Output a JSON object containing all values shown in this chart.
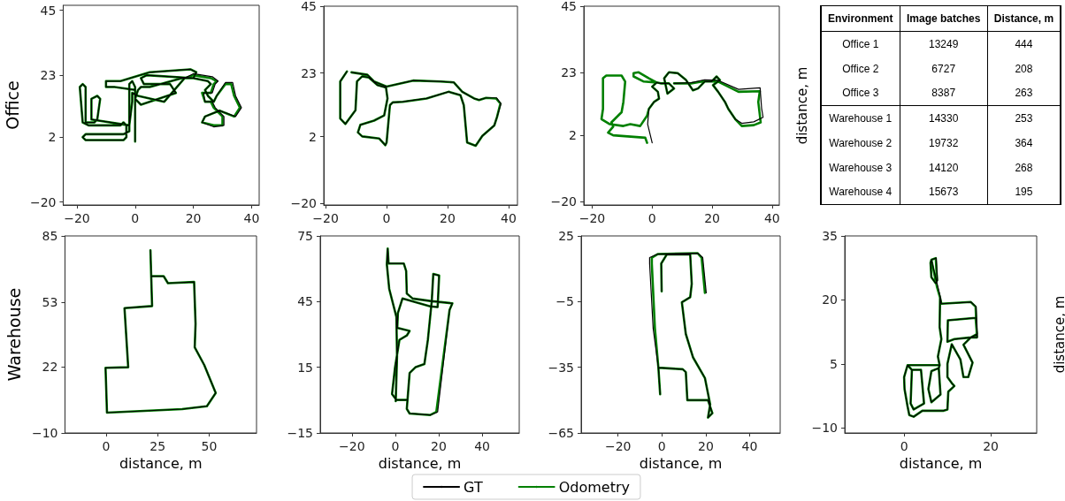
{
  "chart_data": [
    {
      "type": "line",
      "ylabel": "Office",
      "xlim": [
        -24.7,
        42.6
      ],
      "ylim": [
        -21,
        46.7
      ],
      "xticks": [
        -20,
        0,
        20,
        40
      ],
      "yticks": [
        -20,
        2,
        23,
        45
      ],
      "marker": "none",
      "series": [
        {
          "color": "#000000",
          "x": [
            0,
            0,
            0,
            -1,
            -2,
            -2,
            -4,
            -17,
            -18,
            -17,
            -4,
            -3,
            -3,
            -4,
            -5,
            -16,
            -18,
            -19,
            -18,
            -17,
            -17,
            -14,
            -13,
            -12,
            -13,
            -15,
            -15,
            -2,
            -1,
            -1,
            1,
            10,
            17,
            20,
            26.5,
            28.5,
            27.5,
            26.5,
            23.5,
            24,
            26.5,
            27.5,
            30.5,
            30.5,
            27,
            23,
            24,
            29,
            34.5,
            36.5,
            34.5,
            33.5,
            31,
            28,
            27,
            25,
            24,
            26,
            25,
            20,
            16,
            5,
            2,
            1,
            0,
            2,
            14,
            12,
            3,
            2,
            4,
            20,
            21,
            19,
            5,
            -5,
            -10,
            -10,
            -7,
            0
          ],
          "values": [
            0.5,
            14,
            19,
            21,
            20,
            4,
            3,
            3,
            2,
            1,
            1,
            2,
            6,
            7,
            6,
            6,
            7,
            19,
            20,
            19,
            7,
            7,
            8,
            15,
            16,
            15,
            8,
            6,
            14,
            17,
            16,
            14,
            22,
            23.5,
            22.5,
            21,
            20,
            17,
            17,
            14,
            14,
            12,
            9,
            6,
            5.5,
            7,
            9,
            11,
            9,
            12,
            16,
            20.5,
            20.5,
            16,
            14,
            16,
            18,
            20,
            21,
            22,
            22,
            19,
            19,
            18,
            15,
            13,
            17,
            20,
            20,
            22,
            23,
            22,
            24,
            25,
            24,
            21,
            21,
            19,
            19,
            18
          ]
        },
        {
          "color": "#008000",
          "x": [
            0,
            0,
            0,
            -1,
            -2,
            -2,
            -4,
            -17,
            -18,
            -17,
            -4,
            -3,
            -3,
            -4,
            -5,
            -16,
            -18,
            -19,
            -18,
            -17,
            -17,
            -14,
            -13,
            -12,
            -13,
            -15,
            -15,
            -2,
            -1,
            -1,
            1,
            10,
            17,
            20,
            26,
            28,
            27,
            26,
            23,
            24,
            26,
            27,
            30,
            30,
            27,
            23,
            24,
            29,
            34,
            36,
            34,
            33,
            31,
            28,
            27,
            25,
            24,
            26,
            25,
            20,
            16,
            5,
            2,
            1,
            0,
            2,
            14,
            12,
            3,
            2,
            4,
            20,
            21,
            19,
            5,
            -5,
            -10,
            -10,
            -7,
            0
          ],
          "values": [
            0.5,
            14,
            19,
            21,
            20,
            4,
            3,
            3,
            2,
            1,
            1,
            2,
            6,
            7,
            6,
            6,
            7,
            19,
            20,
            19,
            7,
            7,
            8,
            15,
            16,
            15,
            8,
            6,
            14,
            17,
            16,
            14,
            22,
            23,
            22,
            21,
            20,
            17,
            17,
            14,
            14,
            12,
            9,
            6,
            6,
            7,
            9,
            11,
            9,
            12,
            16,
            20,
            20,
            16,
            14,
            16,
            18,
            20,
            21,
            22,
            22,
            19,
            19,
            18,
            15,
            13,
            17,
            20,
            20,
            22,
            23,
            22,
            24,
            25,
            24,
            21,
            21,
            19,
            19,
            18
          ]
        }
      ]
    },
    {
      "type": "line",
      "xlim": [
        -20.6,
        42.9
      ],
      "ylim": [
        -20.5,
        45
      ],
      "xticks": [
        -20,
        0,
        20,
        40
      ],
      "yticks": [
        -20,
        2,
        23,
        45
      ],
      "marker": "none",
      "series": [
        {
          "color": "#000000",
          "x": [
            -13,
            -15.2,
            -15.2,
            -13.5,
            -10.2,
            -9.7,
            -8,
            -5.8,
            -3,
            -0.2,
            0.3,
            -0.8,
            -4.1,
            -8.6,
            -9.4,
            -8,
            -2.4,
            -0.4,
            0,
            1.1,
            2,
            5.3,
            13.1,
            20.3,
            24.2,
            25.3,
            26.4,
            29.2,
            31.4,
            35.3,
            36.2,
            37.5,
            36,
            32.6,
            30.3,
            28.7,
            24.8,
            22,
            17.6,
            8.7,
            0,
            -4.1,
            -6.3,
            -11.5
          ],
          "values": [
            23.5,
            20.2,
            8,
            6.2,
            10.7,
            20.2,
            21.9,
            21.5,
            19,
            18.2,
            14.6,
            9,
            7.3,
            5.9,
            3.4,
            2.1,
            1.4,
            -0.8,
            0.1,
            12.4,
            13.3,
            13.5,
            14.6,
            16.8,
            15.7,
            12.4,
            0.1,
            -1,
            2.3,
            5.7,
            8.5,
            12.9,
            14.8,
            14.8,
            14.1,
            14.6,
            16.8,
            19.9,
            20.2,
            20.5,
            18.5,
            20.2,
            22.4,
            23.2
          ]
        },
        {
          "color": "#008000",
          "x": [
            -13,
            -15.2,
            -15.2,
            -13.5,
            -10.2,
            -9.7,
            -8,
            -5.8,
            -3,
            -0.2,
            0.3,
            -0.8,
            -4.1,
            -8.6,
            -9.4,
            -8,
            -2.4,
            -0.4,
            0,
            1.1,
            2,
            5.3,
            13.1,
            20.3,
            24.2,
            25.3,
            26.4,
            29.2,
            31.4,
            35.3,
            36.2,
            37.3,
            35.9,
            32.6,
            30.3,
            28.7,
            24.8,
            22,
            17.6,
            8.7,
            0,
            -4.1,
            -6.3,
            -11.5
          ],
          "values": [
            23.5,
            20.2,
            8,
            6.2,
            10.7,
            20.2,
            21.9,
            21.5,
            19,
            18.2,
            14.6,
            9,
            7.3,
            5.9,
            3.4,
            2.1,
            1.4,
            -0.8,
            0.1,
            12.4,
            13.3,
            13.5,
            14.6,
            16.8,
            15.7,
            12.4,
            0.1,
            -1,
            2.3,
            5.7,
            8.5,
            12.9,
            14.6,
            14.8,
            14.1,
            14.6,
            16.8,
            19.9,
            20.2,
            20.5,
            18.5,
            20.2,
            22.4,
            23.2
          ]
        }
      ]
    },
    {
      "type": "line",
      "y2label": "distance, m",
      "xlim": [
        -22.8,
        42.4
      ],
      "ylim": [
        -21.2,
        45
      ],
      "xticks": [
        -20,
        0,
        20,
        40
      ],
      "yticks": [
        -20,
        2,
        23,
        45
      ],
      "marker": "none",
      "series": [
        {
          "color": "#000000",
          "x": [
            0,
            -1.5,
            -1.1,
            0.6,
            2.3,
            1.9,
            0,
            1.5,
            2.8,
            5.6,
            7.3,
            5.1,
            4,
            5.6,
            8.5,
            11.3,
            13.6,
            15.3,
            17.5,
            19.8,
            21.5,
            22.6,
            20.3,
            22,
            24.3,
            25.4,
            27.7,
            29.9,
            33.9,
            37,
            36.5,
            36,
            28.8,
            22,
            17.5,
            13,
            7.3
          ],
          "values": [
            -0.5,
            5.7,
            10.8,
            13.1,
            14.2,
            16.5,
            18.2,
            19.6,
            19.3,
            19.3,
            17.6,
            15.9,
            21,
            23,
            22.7,
            20.4,
            17,
            17.6,
            19.9,
            19.9,
            21.6,
            20.4,
            18.7,
            16.5,
            13.1,
            10.8,
            7.4,
            6,
            6.5,
            8,
            11,
            17.8,
            17.3,
            20.3,
            20.5,
            19.5,
            19.3
          ]
        },
        {
          "color": "#008000",
          "x": [
            -1.7,
            -2.3,
            -13,
            -14.7,
            -13,
            -13.6,
            -11.9,
            -10.2,
            -9.6,
            -9,
            -10.2,
            -15.3,
            -16.4,
            -16.4,
            -16.9,
            -14.1,
            -9.6,
            -7.3,
            -4,
            -1.7,
            -1.1,
            0.6,
            2.3,
            1.9,
            0,
            1.5,
            -1.1,
            -4.5,
            -6.2,
            -6.2,
            -2.8,
            1.5,
            2.8,
            5.6,
            7.3,
            5.1,
            4,
            5.6,
            8.5,
            11.3,
            13.6,
            15.3,
            17.5,
            19.8,
            21.5,
            22.6,
            20.3,
            22,
            24.3,
            25.4,
            27.7,
            29.9,
            33.9,
            36.2,
            35.4,
            35.9,
            28.8,
            22,
            17.5,
            13,
            7.3
          ],
          "values": [
            -0.5,
            1.2,
            2,
            2.9,
            4.9,
            6.3,
            8,
            9.7,
            13.1,
            19.9,
            21.9,
            21.9,
            21,
            10.8,
            7.4,
            5.7,
            5.1,
            5.7,
            5.1,
            8.5,
            10.8,
            13.1,
            14.2,
            16.5,
            18.2,
            19.6,
            21,
            23,
            22.7,
            21.6,
            19.9,
            19.6,
            19.3,
            19.3,
            17.6,
            15.9,
            21,
            23,
            22.7,
            20.4,
            17,
            17.6,
            19.9,
            19.9,
            21.6,
            20.4,
            18.7,
            16.5,
            13.1,
            10.8,
            7.4,
            5.1,
            5.4,
            6.3,
            13.1,
            16.7,
            16.5,
            19.9,
            20.1,
            19.3,
            19.3
          ]
        }
      ]
    },
    {
      "type": "other",
      "annotations": [
        "Environment",
        "Image batches",
        "Distance, m",
        "Office 1",
        "13249",
        "444",
        "Office 2",
        "6727",
        "208",
        "Office 3",
        "8387",
        "263",
        "Warehouse 1",
        "14330",
        "253",
        "Warehouse 2",
        "19732",
        "364",
        "Warehouse 3",
        "14120",
        "268",
        "Warehouse 4",
        "15673",
        "195"
      ]
    },
    {
      "type": "line",
      "ylabel": "Warehouse",
      "xlabel": "distance, m",
      "xlim": [
        -20,
        73
      ],
      "ylim": [
        -10,
        85
      ],
      "xticks": [
        0,
        25,
        50
      ],
      "yticks": [
        -10,
        22,
        53,
        85
      ],
      "marker": "none",
      "series": [
        {
          "color": "#000000",
          "x": [
            21.5,
            22.3,
            8.9,
            10.7,
            -0.3,
            0.4,
            36.9,
            48.9,
            53.2,
            47.6,
            43,
            43.4,
            42.7,
            30,
            27.9,
            22
          ],
          "values": [
            78.1,
            51.2,
            50.2,
            21.7,
            21.4,
            -0.2,
            1.5,
            2.9,
            9.3,
            22.8,
            31.3,
            42.6,
            62.8,
            62.2,
            65.6,
            65.6
          ]
        },
        {
          "color": "#008000",
          "x": [
            21.5,
            22.3,
            8.9,
            10.7,
            -0.3,
            0.4,
            36.9,
            48.9,
            53.2,
            47.6,
            43,
            43.4,
            42.7,
            30,
            27.9,
            22
          ],
          "values": [
            78.1,
            51.2,
            50.2,
            21.7,
            21.4,
            -0.2,
            1.5,
            2.9,
            9.3,
            22.8,
            31.3,
            42.6,
            62.8,
            62.2,
            65.6,
            65.6
          ]
        }
      ]
    },
    {
      "type": "line",
      "xlabel": "distance, m",
      "xlim": [
        -34.6,
        57.1
      ],
      "ylim": [
        -15,
        75
      ],
      "xticks": [
        -20,
        0,
        20,
        40
      ],
      "yticks": [
        -15,
        15,
        45,
        75
      ],
      "marker": "none",
      "legend": "bottom",
      "series": [
        {
          "name": "GT",
          "color": "#000000",
          "x": [
            0.2,
            0.8,
            0.5,
            -2.8,
            -3.9,
            -3.5,
            -3.1,
            3.9,
            5,
            5.3,
            8,
            16.1,
            26.3,
            25,
            19.5,
            16.1,
            6.6,
            5.3,
            6.6,
            9.4,
            13.4,
            15,
            16.8,
            17.5,
            20.2,
            19.5,
            16.1,
            3.3,
            1.2,
            0.9,
            6.6,
            5.3,
            1.9,
            -0.1,
            -1.5,
            0.5,
            5.3
          ],
          "values": [
            -0.5,
            20,
            38,
            50.8,
            62,
            69.2,
            62.4,
            62.4,
            59,
            48.7,
            46.4,
            45.3,
            44.2,
            41.2,
            -5.4,
            -6.8,
            -6.1,
            -4,
            12.4,
            15.1,
            16.5,
            27.5,
            45.3,
            57.6,
            56.9,
            42.5,
            42.8,
            46.4,
            39.8,
            33,
            31.6,
            29.5,
            27.5,
            15.1,
            2.8,
            0.1,
            0.1
          ]
        },
        {
          "name": "Odometry",
          "color": "#008000",
          "x": [
            0.2,
            0.8,
            0.5,
            -2.8,
            -3.9,
            -3.5,
            -3.1,
            3.9,
            5,
            5.3,
            8,
            16.1,
            26.3,
            25,
            18.9,
            16.1,
            6.6,
            5.3,
            6.6,
            9.4,
            13.4,
            15,
            16.8,
            17.5,
            20.2,
            19.5,
            16.1,
            3.3,
            1.2,
            0.9,
            6.6,
            5.3,
            1.9,
            -0.1,
            -1.5,
            0.5,
            5.3
          ],
          "values": [
            -0.5,
            20,
            38,
            50.8,
            62,
            69.2,
            62.4,
            62.4,
            59,
            48.7,
            46.4,
            45.3,
            44.2,
            41.2,
            -5.4,
            -6.8,
            -6.1,
            -4,
            12.4,
            15.1,
            16.5,
            27.5,
            45.3,
            57.6,
            56.9,
            42.5,
            42.8,
            46.4,
            39.8,
            33,
            31.6,
            29.5,
            27.5,
            15.1,
            2.8,
            0.1,
            0.1
          ]
        }
      ]
    },
    {
      "type": "line",
      "xlabel": "distance, m",
      "xlim": [
        -36.8,
        53.9
      ],
      "ylim": [
        -65,
        25
      ],
      "xticks": [
        -20,
        0,
        20,
        40
      ],
      "yticks": [
        -65,
        -35,
        -5,
        25
      ],
      "marker": "none",
      "series": [
        {
          "color": "#000000",
          "x": [
            20.2,
            18.6,
            16.3,
            -1.9,
            -5.6,
            -5.6,
            -4,
            -1.6,
            -0.8,
            -1.6,
            9.5,
            10.9,
            11.6,
            21,
            23,
            21,
            22,
            19.6,
            14.2,
            10.9,
            9.1,
            12.9,
            13.6,
            12.9,
            2.2,
            -0.3,
            -0.1
          ],
          "values": [
            -1,
            15.1,
            17.1,
            16.7,
            15.1,
            12.4,
            -17.1,
            -35.2,
            -47.3,
            -35.2,
            -35.9,
            -37.2,
            -50,
            -50,
            -56,
            -58,
            -52,
            -39.9,
            -30.5,
            -19.8,
            -5.3,
            -3,
            3.1,
            16.5,
            16.5,
            12.4,
            -0.3
          ]
        },
        {
          "color": "#008000",
          "x": [
            19.6,
            18.1,
            16.3,
            -1.9,
            -4.6,
            -4.6,
            -3.2,
            -1.6,
            -0.8,
            -1.6,
            9.5,
            10.9,
            11.6,
            21,
            23,
            21,
            22,
            19.6,
            14.2,
            10.9,
            9.1,
            12.9,
            13.6,
            12.9,
            2.2,
            -0.3,
            -0.1
          ],
          "values": [
            -1,
            15.1,
            17.1,
            16.7,
            15.1,
            12.4,
            -17.1,
            -35.2,
            -47.3,
            -35.2,
            -35.9,
            -37.2,
            -50,
            -50,
            -56,
            -58,
            -52,
            -39.9,
            -30.5,
            -19.8,
            -5.3,
            -3,
            3.1,
            16.5,
            16.5,
            12.4,
            -0.3
          ]
        }
      ]
    },
    {
      "type": "line",
      "xlabel": "distance, m",
      "y2label": "distance, m",
      "xlim": [
        -13.7,
        30.6
      ],
      "ylim": [
        -11.2,
        35
      ],
      "xticks": [
        0,
        20
      ],
      "yticks": [
        -10,
        5,
        20,
        35
      ],
      "marker": "none",
      "series": [
        {
          "color": "#000000",
          "x": [
            6.3,
            7.4,
            7.7,
            7.3,
            6.3,
            6.1,
            6.3,
            7.8,
            8.4,
            8.6,
            15.4,
            16.6,
            16.9,
            15.4,
            11.6,
            10,
            10.1,
            16.6,
            16.9,
            15.4,
            13.7,
            15.8,
            14.8,
            13.7,
            13,
            11,
            10,
            10,
            11,
            11.6,
            10.2,
            10,
            9,
            4.2,
            2.2,
            1.2,
            0.8,
            0.1,
            0,
            0.8,
            1.8,
            3.9,
            4.6,
            2.2,
            1.5,
            1.8,
            0.8,
            8.2,
            8,
            6.3,
            5.6,
            6.3,
            8.4,
            8,
            8.2,
            7.8,
            8.6,
            8.2,
            8.3
          ],
          "values": [
            29.4,
            29.8,
            24.6,
            23.9,
            25.3,
            28.7,
            29.4,
            23,
            20.5,
            19.1,
            19.5,
            18.4,
            11.2,
            11.2,
            10.8,
            10.2,
            15.2,
            15.8,
            12,
            11.2,
            9.5,
            5.3,
            1.9,
            1.9,
            6,
            9.6,
            5,
            1.9,
            0.5,
            -0.2,
            -1.5,
            -5.7,
            -6,
            -6,
            -7.4,
            -7,
            -5,
            -0.9,
            1.9,
            4.7,
            3.6,
            3.6,
            -4.3,
            -5.7,
            -4.3,
            3.6,
            4.7,
            4.7,
            4,
            3.3,
            -0.9,
            -4,
            -2.2,
            4,
            4.7,
            6.7,
            10.8,
            13.6,
            20.5
          ]
        },
        {
          "color": "#008000",
          "x": [
            6.3,
            7.3,
            7.6,
            7.3,
            6.3,
            6.1,
            6.3,
            7.6,
            8.3,
            8.6,
            15.4,
            16.5,
            16.8,
            15.4,
            11.6,
            10,
            10.1,
            16.5,
            16.8,
            15.4,
            13.7,
            15.8,
            14.8,
            13.7,
            13,
            11,
            10,
            10,
            11,
            11.6,
            10.2,
            10,
            9,
            4.2,
            2.2,
            1.2,
            0.8,
            0.1,
            0,
            0.8,
            1.8,
            3.9,
            4.6,
            2.2,
            1.5,
            1.8,
            0.8,
            8.2,
            8,
            6.3,
            5.6,
            6.3,
            8.4,
            8,
            8.2,
            7.8,
            8.6,
            8.2,
            8.3
          ],
          "values": [
            29.4,
            29.8,
            24.6,
            23.9,
            25.3,
            28.7,
            29.4,
            23,
            20.5,
            19.1,
            19.5,
            18.4,
            11.2,
            11.2,
            10.8,
            10.2,
            15.2,
            15.8,
            12,
            11.2,
            9.5,
            5.3,
            1.9,
            1.9,
            6,
            9.6,
            5,
            1.9,
            0.5,
            -0.2,
            -1.5,
            -5.7,
            -6,
            -6,
            -7.4,
            -7,
            -5,
            -0.9,
            1.9,
            4.7,
            3.6,
            3.6,
            -4.3,
            -5.7,
            -4.3,
            3.6,
            4.7,
            4.7,
            4,
            3.3,
            -0.9,
            -4,
            -2.2,
            4,
            4.7,
            6.7,
            10.8,
            13.6,
            20.5
          ]
        }
      ]
    }
  ]
}
